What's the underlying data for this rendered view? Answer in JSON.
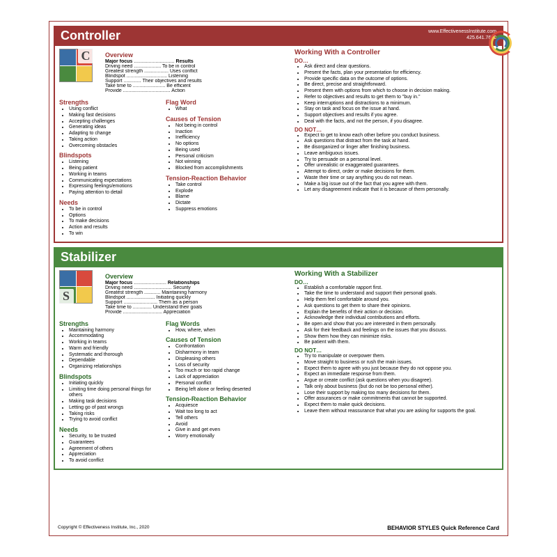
{
  "contact": {
    "url": "www.EffectivenessInstitute.com",
    "phone": "425.641.7620"
  },
  "footer": {
    "copyright": "Copyright © Effectiveness Institute, Inc., 2020",
    "title": "BEHAVIOR STYLES Quick Reference Card"
  },
  "panels": [
    {
      "id": "controller",
      "title": "Controller",
      "letter": "C",
      "letter_pos": "tr",
      "overview_label": "Overview",
      "overview": [
        {
          "k": "Major focus",
          "v": "Results",
          "bold": true
        },
        {
          "k": "Driving need",
          "v": "To be in control"
        },
        {
          "k": "Greatest strength",
          "v": "Uses conflict"
        },
        {
          "k": "Blindspot",
          "v": "Listening"
        },
        {
          "k": "Support",
          "v": "Their objectives and results"
        },
        {
          "k": "Take time to",
          "v": "Be efficient"
        },
        {
          "k": "Provide",
          "v": "Action"
        }
      ],
      "left_sections": [
        {
          "title": "Strengths",
          "items": [
            "Using conflict",
            "Making fast decisions",
            "Accepting challenges",
            "Generating ideas",
            "Adapting to change",
            "Taking action",
            "Overcoming obstacles"
          ]
        },
        {
          "title": "Blindspots",
          "items": [
            "Listening",
            "Being patient",
            "Working in teams",
            "Communicating expectations",
            "Expressing feelings/emotions",
            "Paying attention to detail"
          ]
        },
        {
          "title": "Needs",
          "items": [
            "To be in control",
            "Options",
            "To make decisions",
            "Action and results",
            "To win"
          ]
        }
      ],
      "mid_sections": [
        {
          "title": "Flag Word",
          "items": [
            "What"
          ]
        },
        {
          "title": "Causes of Tension",
          "items": [
            "Not being in control",
            "Inaction",
            "Inefficiency",
            "No options",
            "Being used",
            "Personal criticism",
            "Not winning",
            "Blocked from accomplishments"
          ]
        },
        {
          "title": "Tension-Reaction Behavior",
          "items": [
            "Take control",
            "Explode",
            "Blame",
            "Dictate",
            "Suppress emotions"
          ]
        }
      ],
      "right_title": "Working With a Controller",
      "do_title": "DO…",
      "do_items": [
        "Ask direct and clear questions.",
        "Present the facts, plan your presentation for efficiency.",
        "Provide specific data on the outcome of options.",
        "Be direct, precise and straightforward.",
        "Present them with options from which to choose in decision making.",
        "Refer to objectives and results to get them to \"buy in.\"",
        "Keep interruptions and distractions to a minimum.",
        "Stay on task and focus on the issue at hand.",
        "Support objectives and results if you agree.",
        "Deal with the facts, and not the person, if you disagree."
      ],
      "donot_title": "DO NOT…",
      "donot_items": [
        "Expect to get to know each other before you conduct business.",
        "Ask questions that distract from the task at hand.",
        "Be disorganized or linger after finishing business.",
        "Leave ambiguous issues.",
        "Try to persuade on a personal level.",
        "Offer unrealistic or exaggerated guarantees.",
        "Attempt to direct, order or make decisions for them.",
        "Waste their time or say anything you do not mean.",
        "Make a big issue out of the fact that you agree with them.",
        "Let any disagreement indicate that it is because of them personally."
      ]
    },
    {
      "id": "stabilizer",
      "title": "Stabilizer",
      "letter": "S",
      "letter_pos": "bl",
      "overview_label": "Overview",
      "overview": [
        {
          "k": "Major focus",
          "v": "Relationships",
          "bold": true
        },
        {
          "k": "Driving need",
          "v": "Security"
        },
        {
          "k": "Greatest strength",
          "v": "Maintaining harmony"
        },
        {
          "k": "Blindspot",
          "v": "Initiating quickly"
        },
        {
          "k": "Support",
          "v": "Them as a person"
        },
        {
          "k": "Take time to",
          "v": "Understand their goals"
        },
        {
          "k": "Provide",
          "v": "Appreciation"
        }
      ],
      "left_sections": [
        {
          "title": "Strengths",
          "items": [
            "Maintaining harmony",
            "Accommodating",
            "Working in teams",
            "Warm and friendly",
            "Systematic and thorough",
            "Dependable",
            "Organizing relationships"
          ]
        },
        {
          "title": "Blindspots",
          "items": [
            "Initiating quickly",
            "Limiting time doing personal things for others",
            "Making task decisions",
            "Letting go of past wrongs",
            "Taking risks",
            "Trying to avoid conflict"
          ]
        },
        {
          "title": "Needs",
          "items": [
            "Security, to be trusted",
            "Guarantees",
            "Agreement of others",
            "Appreciation",
            "To avoid conflict"
          ]
        }
      ],
      "mid_sections": [
        {
          "title": "Flag Words",
          "items": [
            "How, where, when"
          ]
        },
        {
          "title": "Causes of Tension",
          "items": [
            "Confrontation",
            "Disharmony in team",
            "Displeasing others",
            "Loss of security",
            "Too much or too rapid change",
            "Lack of appreciation",
            "Personal conflict",
            "Being left alone or feeling deserted"
          ]
        },
        {
          "title": "Tension-Reaction Behavior",
          "items": [
            "Acquiesce",
            "Wait too long to act",
            "Tell others",
            "Avoid",
            "Give in and get even",
            "Worry emotionally"
          ]
        }
      ],
      "right_title": "Working With a Stabilizer",
      "do_title": "DO…",
      "do_items": [
        "Establish a comfortable rapport first.",
        "Take the time to understand and support their personal goals.",
        "Help them feel comfortable around you.",
        "Ask questions to get them to share their opinions.",
        "Explain the benefits of their action or decision.",
        "Acknowledge their individual contributions and efforts.",
        "Be open and show that you are interested in them personally.",
        "Ask for their feedback and feelings on the issues that you discuss.",
        "Show them how they can minimize risks.",
        "Be patient with them."
      ],
      "donot_title": "DO NOT…",
      "donot_items": [
        "Try to manipulate or overpower them.",
        "Move straight to business or rush the main issues.",
        "Expect them to agree with you just because they do not oppose you.",
        "Expect an immediate response from them.",
        "Argue or create conflict (ask questions when you disagree).",
        "Talk only about business (but do not be too personal either).",
        "Lose their support by making too many decisions for them.",
        "Offer assurances or make commitments that cannot be supported.",
        "Expect them to make quick decisions.",
        "Leave them without reassurance that what you are asking for supports the goal."
      ]
    }
  ]
}
